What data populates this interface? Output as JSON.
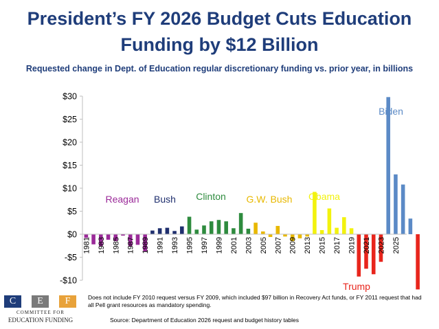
{
  "header": {
    "title_line1": "President’s FY 2026 Budget Cuts Education",
    "title_line2": "Funding by $12 Billion",
    "subtitle": "Requested change in Dept. of Education regular discretionary funding vs. prior year, in billions"
  },
  "footer": {
    "note": "Does not include FY 2010 request versus FY 2009, which included $97 billion in Recovery Act funds, or FY 2011 request that had all Pell grant resources as mandatory spending.",
    "source": "Source: Department of Education 2026 request and budget history tables"
  },
  "logo": {
    "letters": [
      "C",
      "E",
      "F"
    ],
    "line1": "COMMITTEE FOR",
    "line2": "EDUCATION FUNDING",
    "colors": [
      "#1f3d7a",
      "#7a7a7a",
      "#e8a23a"
    ]
  },
  "chart_data": {
    "type": "bar",
    "xlabel": "",
    "ylabel": "",
    "ylim": [
      -10,
      30
    ],
    "yticks": [
      -10,
      -5,
      0,
      5,
      10,
      15,
      20,
      25,
      30
    ],
    "ytick_labels": [
      "-$10",
      "-$5",
      "$0",
      "$5",
      "$10",
      "$15",
      "$20",
      "$25",
      "$30"
    ],
    "x_tick_labels": [
      "1981",
      "1983",
      "1985",
      "1987",
      "1989",
      "1991",
      "1993",
      "1995",
      "1997",
      "1999",
      "2001",
      "2003",
      "2005",
      "2007",
      "2009",
      "2013",
      "2015",
      "2017",
      "2019",
      "2021",
      "2023",
      "2025"
    ],
    "grid": false,
    "categories": [
      "1981",
      "1982",
      "1983",
      "1984",
      "1985",
      "1986",
      "1987",
      "1988",
      "1989",
      "1990",
      "1991",
      "1992",
      "1993",
      "1994",
      "1995",
      "1996",
      "1997",
      "1998",
      "1999",
      "2000",
      "2001",
      "2002",
      "2003",
      "2004",
      "2005",
      "2006",
      "2007",
      "2008",
      "2009",
      "2012",
      "2013",
      "2014",
      "2015",
      "2016",
      "2017",
      "2018",
      "2019",
      "2020",
      "2021",
      "2022",
      "2023",
      "2024",
      "2025",
      "2026"
    ],
    "administrations": [
      {
        "name": "Reagan",
        "color": "#9b2a99",
        "values": [
          -0.8,
          -2.2,
          -2.6,
          -1.2,
          -1.5,
          -0.3,
          -2.7,
          -2.3,
          -3.8
        ]
      },
      {
        "name": "Bush",
        "color": "#1f2f6e",
        "values": [
          0.8,
          1.3,
          1.4,
          0.7,
          1.7
        ]
      },
      {
        "name": "Clinton",
        "color": "#2e8b3e",
        "values": [
          3.8,
          1.0,
          1.9,
          2.8,
          3.1,
          2.8,
          1.3,
          4.6,
          1.2
        ]
      },
      {
        "name": "G.W. Bush",
        "color": "#e8b800",
        "values": [
          2.5,
          0.6,
          -0.6,
          1.8,
          -0.5,
          -1.5,
          -0.9,
          -0.5
        ]
      },
      {
        "name": "Obama",
        "color": "#f2f20e",
        "values": [
          9.2,
          0.9,
          5.6,
          1.4,
          3.7,
          1.3
        ]
      },
      {
        "name": "Trump",
        "color": "#e8251c",
        "values": [
          -9.2,
          -7.5,
          -8.7,
          -6.0
        ]
      },
      {
        "name": "Biden",
        "color": "#5b8ac6",
        "values": [
          29.8,
          13.0,
          10.8,
          3.4
        ]
      },
      {
        "name": "",
        "color": "#e8251c",
        "values": [
          -12.0
        ]
      }
    ]
  }
}
